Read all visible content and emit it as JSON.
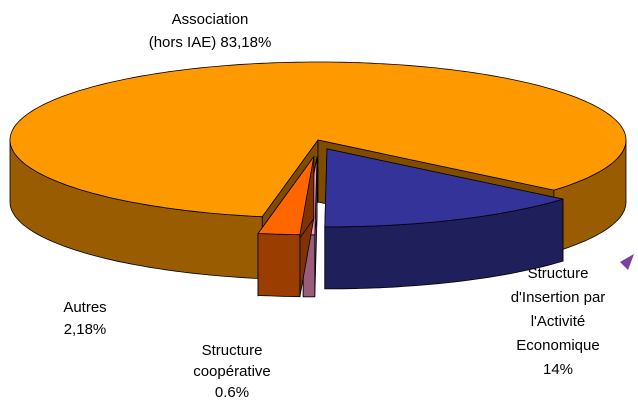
{
  "chart_data": {
    "type": "pie3d",
    "categories": [
      "Association\n(hors IAE)",
      "Structure\nd'Insertion par\nl'Activité\nEconomique",
      "Structure\ncoopérative",
      "Autres"
    ],
    "values": [
      83.18,
      14,
      0.6,
      2.18
    ],
    "value_labels": [
      "83,18%",
      "14%",
      "0.6%",
      "2,18%"
    ],
    "colors": [
      "#FF9900",
      "#333399",
      "#FF99CC",
      "#FF6600"
    ]
  }
}
